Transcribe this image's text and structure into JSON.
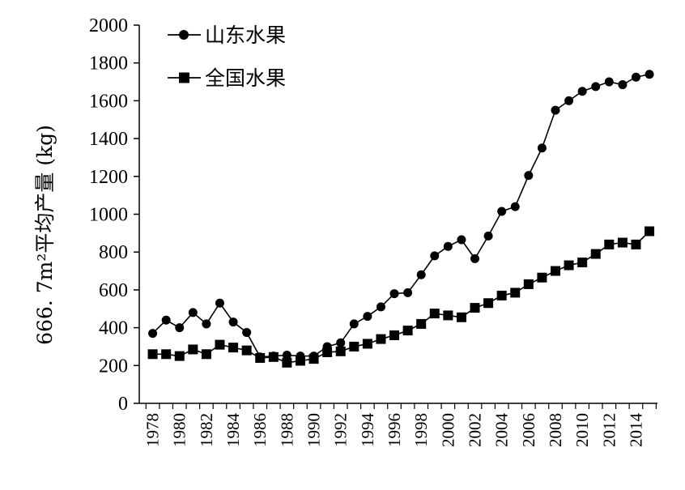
{
  "chart_data": {
    "type": "line",
    "title": "",
    "xlabel": "",
    "ylabel": "666. 7m²平均产量 (kg)",
    "ylim": [
      0,
      2000
    ],
    "y_ticks": [
      0,
      200,
      400,
      600,
      800,
      1000,
      1200,
      1400,
      1600,
      1800,
      2000
    ],
    "x_tick_labels": [
      "1978",
      "1980",
      "1982",
      "1984",
      "1986",
      "1988",
      "1990",
      "1992",
      "1994",
      "1996",
      "1998",
      "2000",
      "2002",
      "2004",
      "2006",
      "2008",
      "2010",
      "2012",
      "2014"
    ],
    "x": [
      1978,
      1979,
      1980,
      1981,
      1982,
      1983,
      1984,
      1985,
      1986,
      1987,
      1988,
      1989,
      1990,
      1991,
      1992,
      1993,
      1994,
      1995,
      1996,
      1997,
      1998,
      1999,
      2000,
      2001,
      2002,
      2003,
      2004,
      2005,
      2006,
      2007,
      2008,
      2009,
      2010,
      2011,
      2012,
      2013,
      2014,
      2015
    ],
    "grid": false,
    "legend_position": "top-left",
    "series": [
      {
        "name": "山东水果",
        "marker": "circle",
        "color": "#000000",
        "values": [
          370,
          440,
          400,
          480,
          420,
          530,
          430,
          375,
          245,
          250,
          255,
          250,
          250,
          300,
          320,
          420,
          460,
          510,
          580,
          585,
          680,
          780,
          830,
          865,
          765,
          885,
          1015,
          1040,
          1205,
          1350,
          1550,
          1600,
          1650,
          1675,
          1700,
          1685,
          1725,
          1740
        ]
      },
      {
        "name": "全国水果",
        "marker": "square",
        "color": "#000000",
        "values": [
          260,
          260,
          250,
          285,
          260,
          310,
          295,
          280,
          240,
          245,
          215,
          225,
          235,
          270,
          275,
          300,
          315,
          340,
          360,
          385,
          420,
          475,
          465,
          455,
          505,
          530,
          570,
          585,
          630,
          665,
          700,
          730,
          745,
          790,
          840,
          850,
          840,
          910
        ]
      }
    ]
  }
}
